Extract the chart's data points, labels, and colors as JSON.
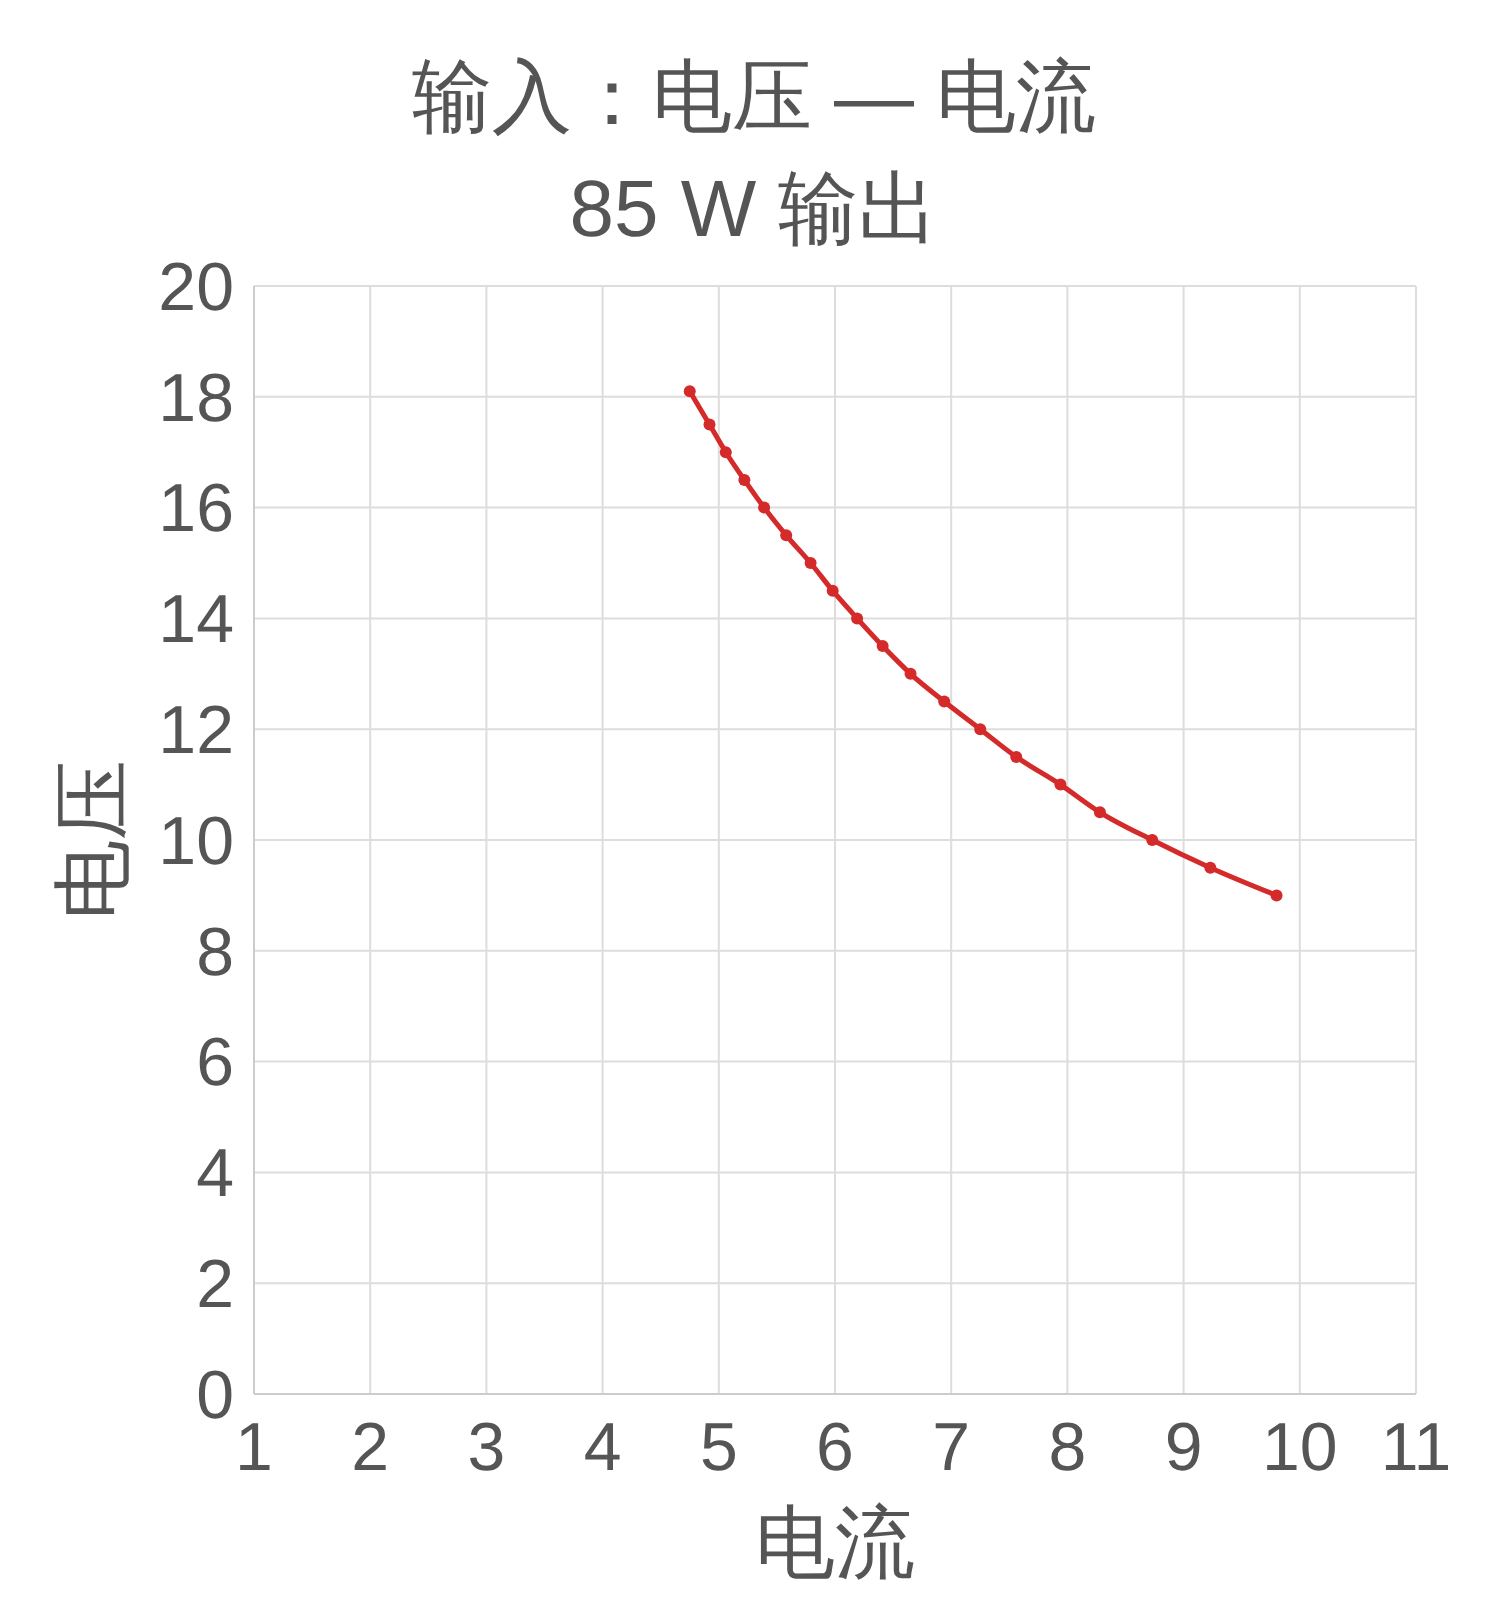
{
  "chart_data": {
    "type": "line",
    "title": "输入：电压 — 电流",
    "subtitle": "85 W 输出",
    "xlabel": "电流",
    "ylabel": "电压",
    "x": [
      4.75,
      4.92,
      5.06,
      5.22,
      5.39,
      5.58,
      5.79,
      5.98,
      6.19,
      6.41,
      6.65,
      6.94,
      7.25,
      7.56,
      7.94,
      8.28,
      8.73,
      9.23,
      9.8
    ],
    "series": [
      {
        "color": "#d42a2a",
        "values": [
          18.1,
          17.5,
          17.0,
          16.5,
          16.0,
          15.5,
          15.0,
          14.5,
          14.0,
          13.5,
          13.0,
          12.5,
          12.0,
          11.5,
          11.0,
          10.5,
          10.0,
          9.5,
          9.0
        ]
      }
    ],
    "xlim": [
      1,
      11
    ],
    "xticks": [
      1,
      2,
      3,
      4,
      5,
      6,
      7,
      8,
      9,
      10,
      11
    ],
    "ylim": [
      0,
      20
    ],
    "yticks": [
      0,
      2,
      4,
      6,
      8,
      10,
      12,
      14,
      16,
      18,
      20
    ],
    "grid": true,
    "marker": "circle",
    "line_style": "solid"
  }
}
